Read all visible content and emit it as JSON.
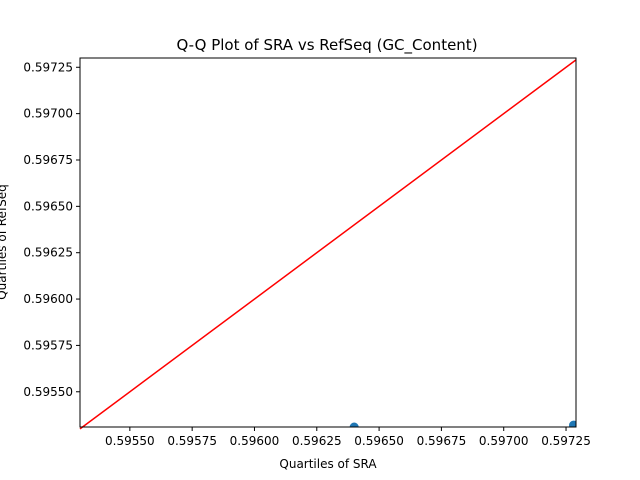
{
  "chart_data": {
    "type": "scatter",
    "title": "Q-Q Plot of SRA vs RefSeq (GC_Content)",
    "xlabel": "Quartiles of SRA",
    "ylabel": "Quartiles of RefSeq",
    "xlim": [
      0.5953,
      0.59729
    ],
    "ylim": [
      0.59531,
      0.5973
    ],
    "xticks": [
      "0.59550",
      "0.59575",
      "0.59600",
      "0.59625",
      "0.59650",
      "0.59675",
      "0.59700",
      "0.59725"
    ],
    "yticks": [
      "0.59550",
      "0.59575",
      "0.59600",
      "0.59625",
      "0.59650",
      "0.59675",
      "0.59700",
      "0.59725"
    ],
    "series": [
      {
        "x": [
          0.5964,
          0.59728
        ],
        "y": [
          0.59531,
          0.59532
        ]
      }
    ],
    "reference_line": {
      "x": [
        0.5953,
        0.59729
      ],
      "y": [
        0.5953,
        0.59729
      ]
    },
    "grid": false,
    "colors": {
      "points": "#1f77b4",
      "reference_line": "#ff0000"
    }
  }
}
